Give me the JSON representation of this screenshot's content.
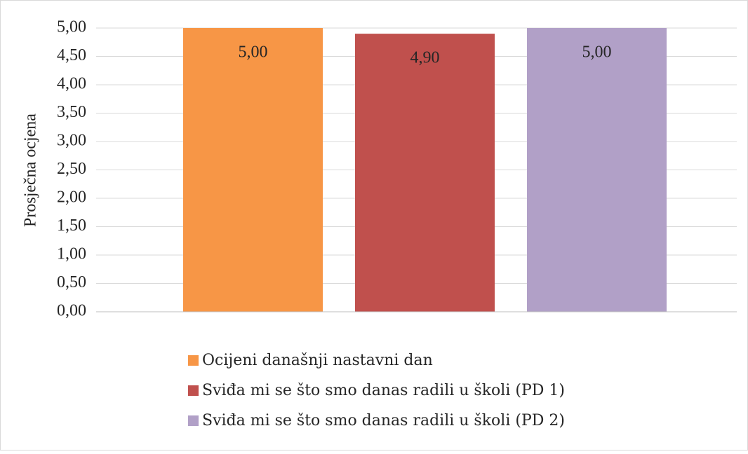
{
  "chart_data": {
    "type": "bar",
    "y_label": "Prosječna ocjena",
    "categories": [
      null
    ],
    "series": [
      {
        "name": "Ocijeni današnji nastavni dan",
        "color": "#f79646",
        "values": [
          5.0
        ],
        "value_labels": [
          "5,00"
        ]
      },
      {
        "name": "Sviđa mi se što smo danas radili u školi (PD 1)",
        "color": "#c0504d",
        "values": [
          4.9
        ],
        "value_labels": [
          "4,90"
        ]
      },
      {
        "name": "Sviđa mi se što smo danas radili u školi (PD 2)",
        "color": "#b1a0c7",
        "values": [
          5.0
        ],
        "value_labels": [
          "5,00"
        ]
      }
    ],
    "ylim": [
      0,
      5
    ],
    "yticks": [
      {
        "value": 0,
        "label": "0,00"
      },
      {
        "value": 0.5,
        "label": "0,50"
      },
      {
        "value": 1,
        "label": "1,00"
      },
      {
        "value": 1.5,
        "label": "1,50"
      },
      {
        "value": 2,
        "label": "2,00"
      },
      {
        "value": 2.5,
        "label": "2,50"
      },
      {
        "value": 3,
        "label": "3,00"
      },
      {
        "value": 3.5,
        "label": "3,50"
      },
      {
        "value": 4,
        "label": "4,00"
      },
      {
        "value": 4.5,
        "label": "4,50"
      },
      {
        "value": 5,
        "label": "5,00"
      }
    ],
    "grid": true,
    "legend": "bottom"
  }
}
